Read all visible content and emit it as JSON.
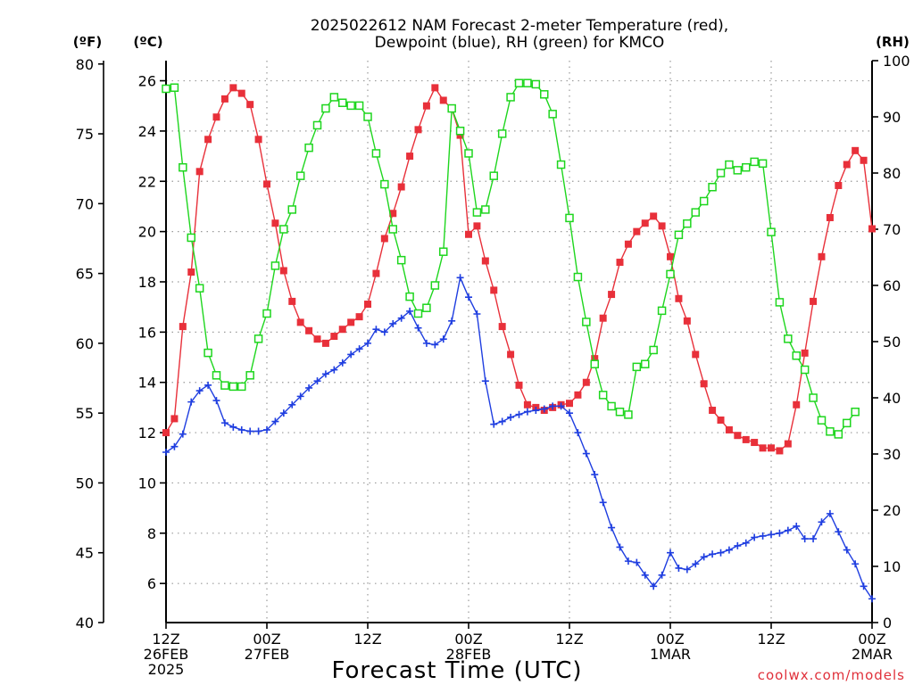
{
  "chart_data": {
    "type": "line",
    "title_lines": [
      "2025022612 NAM Forecast 2-meter Temperature (red),",
      "Dewpoint (blue), RH (green) for KMCO"
    ],
    "xlabel": "Forecast Time (UTC)",
    "credit": "coolwx.com/models",
    "units": {
      "fahrenheit": "(ºF)",
      "celsius": "(ºC)",
      "rh": "(RH)"
    },
    "x_unit": "forecast hour from 2025-02-26 12Z",
    "x_range": [
      0,
      84
    ],
    "x_ticks": [
      {
        "hour": 0,
        "lines": [
          "12Z",
          "26FEB",
          "2025"
        ]
      },
      {
        "hour": 12,
        "lines": [
          "00Z",
          "27FEB"
        ]
      },
      {
        "hour": 24,
        "lines": [
          "12Z"
        ]
      },
      {
        "hour": 36,
        "lines": [
          "00Z",
          "28FEB"
        ]
      },
      {
        "hour": 48,
        "lines": [
          "12Z"
        ]
      },
      {
        "hour": 60,
        "lines": [
          "00Z",
          "1MAR"
        ]
      },
      {
        "hour": 72,
        "lines": [
          "12Z"
        ]
      },
      {
        "hour": 84,
        "lines": [
          "00Z",
          "2MAR"
        ]
      }
    ],
    "y_f_ticks": [
      40,
      45,
      50,
      55,
      60,
      65,
      70,
      75,
      80
    ],
    "y_c_ticks": [
      6,
      8,
      10,
      12,
      14,
      16,
      18,
      20,
      22,
      24,
      26
    ],
    "y_rh_ticks": [
      0,
      10,
      20,
      30,
      40,
      50,
      60,
      70,
      80,
      90,
      100
    ],
    "y_f_range": [
      40,
      80.24
    ],
    "y_rh_range": [
      0,
      100
    ],
    "colors": {
      "temperature": "#e8303a",
      "dewpoint": "#1f3ee0",
      "rh": "#1ed61e",
      "grid": "#9a9a9a"
    },
    "series": [
      {
        "key": "temperature",
        "marker": "filled-square",
        "axis": "fahrenheit",
        "values": [
          [
            0,
            53.6
          ],
          [
            1,
            54.6
          ],
          [
            2,
            61.2
          ],
          [
            3,
            65.1
          ],
          [
            4,
            72.3
          ],
          [
            5,
            74.6
          ],
          [
            6,
            76.2
          ],
          [
            7,
            77.5
          ],
          [
            8,
            78.3
          ],
          [
            9,
            77.9
          ],
          [
            10,
            77.1
          ],
          [
            11,
            74.6
          ],
          [
            12,
            71.4
          ],
          [
            13,
            68.6
          ],
          [
            14,
            65.2
          ],
          [
            15,
            63.0
          ],
          [
            16,
            61.5
          ],
          [
            17,
            60.9
          ],
          [
            18,
            60.3
          ],
          [
            19,
            60.0
          ],
          [
            20,
            60.5
          ],
          [
            21,
            61.0
          ],
          [
            22,
            61.5
          ],
          [
            23,
            61.9
          ],
          [
            24,
            62.8
          ],
          [
            25,
            65.0
          ],
          [
            26,
            67.5
          ],
          [
            27,
            69.3
          ],
          [
            28,
            71.2
          ],
          [
            29,
            73.4
          ],
          [
            30,
            75.3
          ],
          [
            31,
            77.0
          ],
          [
            32,
            78.3
          ],
          [
            33,
            77.4
          ],
          [
            34,
            76.8
          ],
          [
            35,
            74.9
          ],
          [
            36,
            67.8
          ],
          [
            37,
            68.4
          ],
          [
            38,
            65.9
          ],
          [
            39,
            63.8
          ],
          [
            40,
            61.2
          ],
          [
            41,
            59.2
          ],
          [
            42,
            57.0
          ],
          [
            43,
            55.6
          ],
          [
            44,
            55.4
          ],
          [
            45,
            55.2
          ],
          [
            46,
            55.4
          ],
          [
            47,
            55.6
          ],
          [
            48,
            55.7
          ],
          [
            49,
            56.3
          ],
          [
            50,
            57.2
          ],
          [
            51,
            58.9
          ],
          [
            52,
            61.8
          ],
          [
            53,
            63.5
          ],
          [
            54,
            65.8
          ],
          [
            55,
            67.1
          ],
          [
            56,
            68.0
          ],
          [
            57,
            68.6
          ],
          [
            58,
            69.1
          ],
          [
            59,
            68.4
          ],
          [
            60,
            66.2
          ],
          [
            61,
            63.2
          ],
          [
            62,
            61.6
          ],
          [
            63,
            59.2
          ],
          [
            64,
            57.1
          ],
          [
            65,
            55.2
          ],
          [
            66,
            54.5
          ],
          [
            67,
            53.8
          ],
          [
            68,
            53.4
          ],
          [
            69,
            53.1
          ],
          [
            70,
            52.9
          ],
          [
            71,
            52.5
          ],
          [
            72,
            52.5
          ],
          [
            73,
            52.3
          ],
          [
            74,
            52.8
          ],
          [
            75,
            55.6
          ],
          [
            76,
            59.3
          ],
          [
            77,
            63.0
          ],
          [
            78,
            66.2
          ],
          [
            79,
            69.0
          ],
          [
            80,
            71.3
          ],
          [
            81,
            72.8
          ],
          [
            82,
            73.8
          ],
          [
            83,
            73.1
          ],
          [
            84,
            68.2
          ]
        ]
      },
      {
        "key": "dewpoint",
        "marker": "plus",
        "axis": "fahrenheit",
        "values": [
          [
            0,
            52.2
          ],
          [
            1,
            52.6
          ],
          [
            2,
            53.5
          ],
          [
            3,
            55.8
          ],
          [
            4,
            56.6
          ],
          [
            5,
            57.0
          ],
          [
            6,
            55.9
          ],
          [
            7,
            54.3
          ],
          [
            8,
            54.0
          ],
          [
            9,
            53.8
          ],
          [
            10,
            53.7
          ],
          [
            11,
            53.7
          ],
          [
            12,
            53.8
          ],
          [
            13,
            54.4
          ],
          [
            14,
            55.0
          ],
          [
            15,
            55.6
          ],
          [
            16,
            56.2
          ],
          [
            17,
            56.8
          ],
          [
            18,
            57.3
          ],
          [
            19,
            57.8
          ],
          [
            20,
            58.1
          ],
          [
            21,
            58.6
          ],
          [
            22,
            59.2
          ],
          [
            23,
            59.6
          ],
          [
            24,
            60.0
          ],
          [
            25,
            61.0
          ],
          [
            26,
            60.8
          ],
          [
            27,
            61.4
          ],
          [
            28,
            61.8
          ],
          [
            29,
            62.3
          ],
          [
            30,
            61.1
          ],
          [
            31,
            60.0
          ],
          [
            32,
            59.9
          ],
          [
            33,
            60.3
          ],
          [
            34,
            61.6
          ],
          [
            35,
            64.7
          ],
          [
            36,
            63.3
          ],
          [
            37,
            62.1
          ],
          [
            38,
            57.3
          ],
          [
            39,
            54.2
          ],
          [
            40,
            54.4
          ],
          [
            41,
            54.7
          ],
          [
            42,
            54.9
          ],
          [
            43,
            55.1
          ],
          [
            44,
            55.2
          ],
          [
            45,
            55.3
          ],
          [
            46,
            55.5
          ],
          [
            47,
            55.5
          ],
          [
            48,
            55.0
          ],
          [
            49,
            53.6
          ],
          [
            50,
            52.1
          ],
          [
            51,
            50.6
          ],
          [
            52,
            48.6
          ],
          [
            53,
            46.8
          ],
          [
            54,
            45.4
          ],
          [
            55,
            44.4
          ],
          [
            56,
            44.3
          ],
          [
            57,
            43.4
          ],
          [
            58,
            42.6
          ],
          [
            59,
            43.4
          ],
          [
            60,
            45.0
          ],
          [
            61,
            43.9
          ],
          [
            62,
            43.8
          ],
          [
            63,
            44.2
          ],
          [
            64,
            44.7
          ],
          [
            65,
            44.9
          ],
          [
            66,
            45.0
          ],
          [
            67,
            45.2
          ],
          [
            68,
            45.5
          ],
          [
            69,
            45.7
          ],
          [
            70,
            46.1
          ],
          [
            71,
            46.2
          ],
          [
            72,
            46.3
          ],
          [
            73,
            46.4
          ],
          [
            74,
            46.6
          ],
          [
            75,
            46.9
          ],
          [
            76,
            46.0
          ],
          [
            77,
            46.0
          ],
          [
            78,
            47.2
          ],
          [
            79,
            47.8
          ],
          [
            80,
            46.5
          ],
          [
            81,
            45.2
          ],
          [
            82,
            44.2
          ],
          [
            83,
            42.6
          ],
          [
            84,
            41.7
          ]
        ]
      },
      {
        "key": "rh",
        "marker": "open-square",
        "axis": "rh",
        "values": [
          [
            0,
            95.0
          ],
          [
            1,
            95.2
          ],
          [
            2,
            81.0
          ],
          [
            3,
            68.5
          ],
          [
            4,
            59.5
          ],
          [
            5,
            48.0
          ],
          [
            6,
            44.0
          ],
          [
            7,
            42.2
          ],
          [
            8,
            42.0
          ],
          [
            9,
            42.0
          ],
          [
            10,
            44.0
          ],
          [
            11,
            50.5
          ],
          [
            12,
            55.0
          ],
          [
            13,
            63.5
          ],
          [
            14,
            70.0
          ],
          [
            15,
            73.5
          ],
          [
            16,
            79.5
          ],
          [
            17,
            84.5
          ],
          [
            18,
            88.5
          ],
          [
            19,
            91.5
          ],
          [
            20,
            93.5
          ],
          [
            21,
            92.5
          ],
          [
            22,
            92.0
          ],
          [
            23,
            92.0
          ],
          [
            24,
            90.0
          ],
          [
            25,
            83.5
          ],
          [
            26,
            78.0
          ],
          [
            27,
            70.0
          ],
          [
            28,
            64.5
          ],
          [
            29,
            58.0
          ],
          [
            30,
            55.0
          ],
          [
            31,
            56.0
          ],
          [
            32,
            60.0
          ],
          [
            33,
            66.0
          ],
          [
            34,
            91.5
          ],
          [
            35,
            87.5
          ],
          [
            36,
            83.5
          ],
          [
            37,
            73.0
          ],
          [
            38,
            73.5
          ],
          [
            39,
            79.5
          ],
          [
            40,
            87.0
          ],
          [
            41,
            93.5
          ],
          [
            42,
            96.0
          ],
          [
            43,
            96.0
          ],
          [
            44,
            95.8
          ],
          [
            45,
            94.0
          ],
          [
            46,
            90.5
          ],
          [
            47,
            81.5
          ],
          [
            48,
            72.0
          ],
          [
            49,
            61.5
          ],
          [
            50,
            53.5
          ],
          [
            51,
            46.0
          ],
          [
            52,
            40.5
          ],
          [
            53,
            38.5
          ],
          [
            54,
            37.5
          ],
          [
            55,
            37.0
          ],
          [
            56,
            45.5
          ],
          [
            57,
            46.0
          ],
          [
            58,
            48.5
          ],
          [
            59,
            55.5
          ],
          [
            60,
            62.0
          ],
          [
            61,
            69.0
          ],
          [
            62,
            71.0
          ],
          [
            63,
            73.0
          ],
          [
            64,
            75.0
          ],
          [
            65,
            77.5
          ],
          [
            66,
            80.0
          ],
          [
            67,
            81.5
          ],
          [
            68,
            80.5
          ],
          [
            69,
            81.0
          ],
          [
            70,
            82.0
          ],
          [
            71,
            81.7
          ],
          [
            72,
            69.5
          ],
          [
            73,
            57.0
          ],
          [
            74,
            50.5
          ],
          [
            75,
            47.5
          ],
          [
            76,
            45.0
          ],
          [
            77,
            40.0
          ],
          [
            78,
            36.0
          ],
          [
            79,
            34.0
          ],
          [
            80,
            33.5
          ],
          [
            81,
            35.5
          ],
          [
            82,
            37.5
          ]
        ]
      }
    ]
  }
}
